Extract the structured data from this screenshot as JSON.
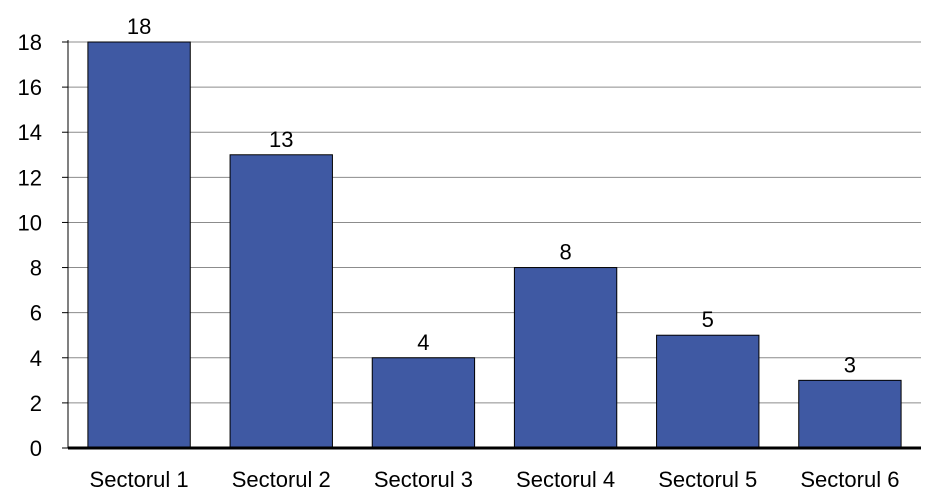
{
  "chart_data": {
    "type": "bar",
    "categories": [
      "Sectorul 1",
      "Sectorul 2",
      "Sectorul 3",
      "Sectorul 4",
      "Sectorul 5",
      "Sectorul 6"
    ],
    "values": [
      18,
      13,
      4,
      8,
      5,
      3
    ],
    "title": "",
    "xlabel": "",
    "ylabel": "",
    "ylim": [
      0,
      18
    ],
    "yticks": [
      0,
      2,
      4,
      6,
      8,
      10,
      12,
      14,
      16,
      18
    ],
    "grid": true,
    "legend": "none",
    "data_labels": true,
    "colors": {
      "bar_fill": "#3f59a3",
      "bar_stroke": "#000000",
      "grid": "#8c8c8c",
      "axis": "#000000"
    }
  }
}
